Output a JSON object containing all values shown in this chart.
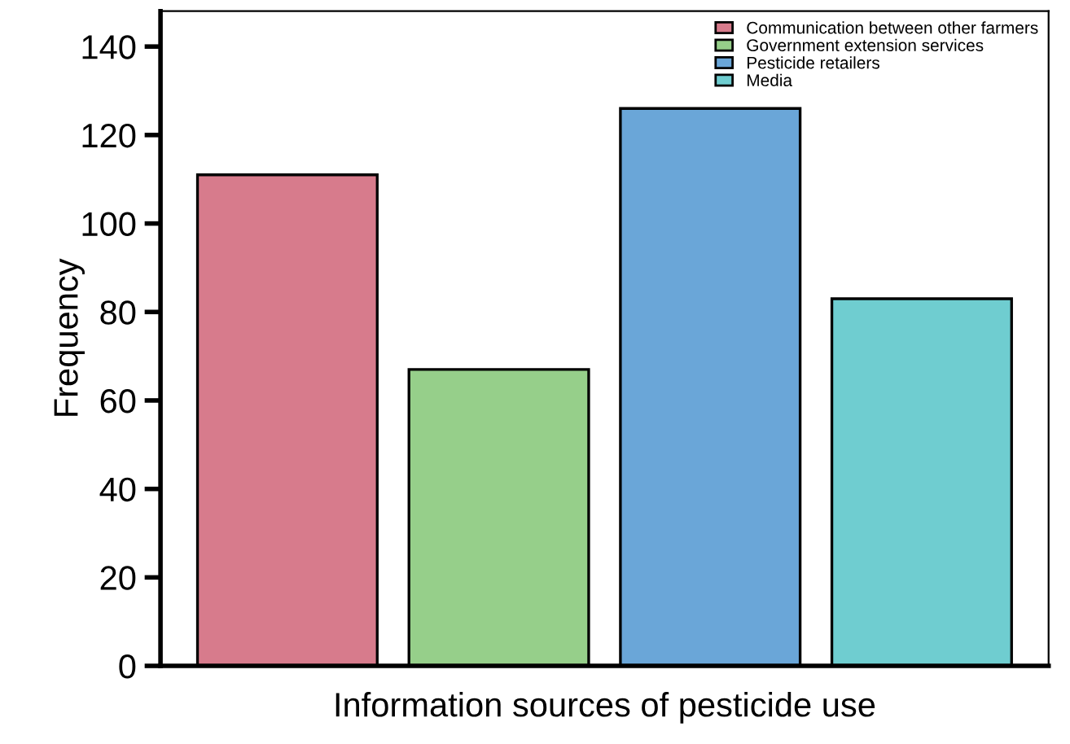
{
  "chart_data": {
    "type": "bar",
    "xlabel": "Information sources of pesticide use",
    "ylabel": "Frequency",
    "categories": [
      null,
      null,
      null,
      null
    ],
    "series": [
      {
        "name": "Communication between other farmers",
        "color": "#d77b8c",
        "values": [
          111,
          null,
          null,
          null
        ]
      },
      {
        "name": "Government extension services",
        "color": "#96cf8a",
        "values": [
          null,
          67,
          null,
          null
        ]
      },
      {
        "name": "Pesticide retailers",
        "color": "#6aa6d8",
        "values": [
          null,
          null,
          126,
          null
        ]
      },
      {
        "name": "Media",
        "color": "#6fcdd0",
        "values": [
          null,
          null,
          null,
          83
        ]
      }
    ],
    "ylim": [
      0,
      148
    ],
    "yticks": [
      0,
      20,
      40,
      60,
      80,
      100,
      120,
      140
    ],
    "grid": false,
    "legend": "top right"
  }
}
